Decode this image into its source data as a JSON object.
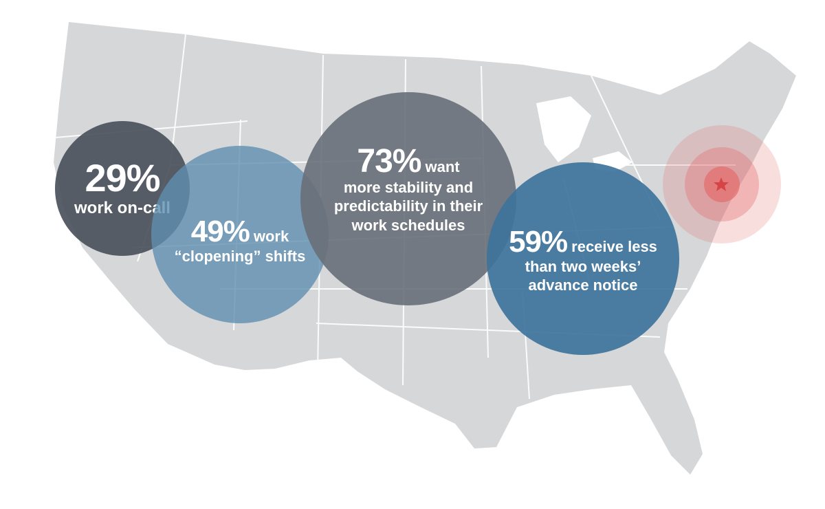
{
  "colors": {
    "map_fill": "#d6d7d9",
    "map_borders": "#ffffff",
    "circle_29": "#4a515b",
    "circle_49": "#5f8eaf",
    "circle_73": "#686f78",
    "circle_59": "#3e739b",
    "target_ring": "#e46b6b",
    "star": "#d64545"
  },
  "stats": {
    "on_call": {
      "percent": "29%",
      "label": "work on-call"
    },
    "clopening": {
      "percent": "49%",
      "label_1": "work",
      "label_2": "“clopening” shifts"
    },
    "stability": {
      "percent": "73%",
      "label_1": "want",
      "label_2": "more stability and",
      "label_3": "predictability in their",
      "label_4": "work schedules"
    },
    "notice": {
      "percent": "59%",
      "label_1": "receive less",
      "label_2": "than two weeks’",
      "label_3": "advance notice"
    }
  },
  "marker": {
    "icon": "star-icon"
  }
}
